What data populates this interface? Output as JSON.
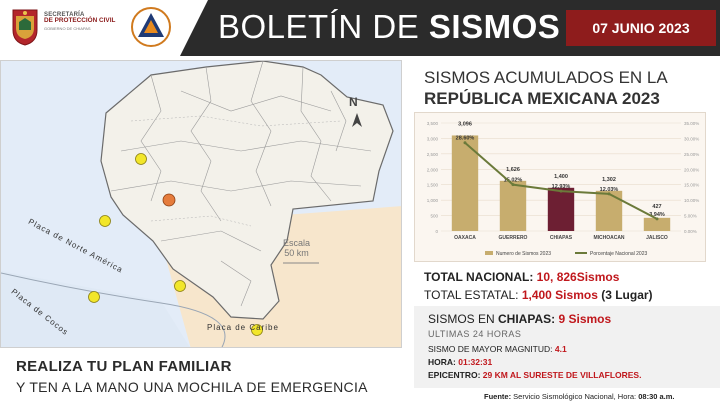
{
  "header": {
    "logo_line1": "SECRETARÍA",
    "logo_line2": "DE PROTECCIÓN CIVIL",
    "logo_line3": "GOBIERNO DE CHIAPAS",
    "title_light": "BOLETÍN DE ",
    "title_bold": "SISMOS",
    "date": "07 JUNIO 2023"
  },
  "map": {
    "plate_north_america": "Placa de Norte América",
    "plate_cocos": "Placa de Cocos",
    "plate_caribe": "Placa de Caribe",
    "scale_label": "Escala",
    "scale_value": "50 km",
    "north_label": "N"
  },
  "bottom_left": {
    "line1": "REALIZA TU PLAN FAMILIAR",
    "line2": "Y TEN A LA MANO UNA MOCHILA DE EMERGENCIA"
  },
  "right": {
    "title_line1": "SISMOS ACUMULADOS EN LA",
    "title_line2": "REPÚBLICA MEXICANA 2023"
  },
  "chart_data": {
    "type": "bar",
    "categories": [
      "OAXACA",
      "GUERRERO",
      "CHIAPAS",
      "MICHOACAN",
      "JALISCO"
    ],
    "series": [
      {
        "name": "Numero de Sismos 2023",
        "values": [
          3096,
          1626,
          1400,
          1302,
          427
        ]
      },
      {
        "name": "Porcentaje Nacional 2023",
        "values": [
          28.6,
          15.02,
          12.93,
          12.03,
          3.94
        ]
      }
    ],
    "value_labels": [
      "3,096",
      "1,626",
      "1,400",
      "1,302",
      "427"
    ],
    "pct_labels": [
      "28.60%",
      "15.02%",
      "12.93%",
      "12.03%",
      "3.94%"
    ],
    "ylim": [
      0,
      3500
    ],
    "y_ticks": [
      "0",
      "500",
      "1,000",
      "1,500",
      "2,000",
      "2,500",
      "3,000",
      "3,500"
    ],
    "y2_ticks": [
      "0.00%",
      "5.00%",
      "10.00%",
      "15.00%",
      "20.00%",
      "25.00%",
      "30.00%",
      "35.00%"
    ],
    "legend_position": "bottom",
    "colors": {
      "bar": "#c7ad6e",
      "highlight": "#6d1f33",
      "line": "#6b7a3a"
    }
  },
  "totals": {
    "nacional_label": "TOTAL NACIONAL: ",
    "nacional_value": "10, 826Sismos",
    "estatal_label": "TOTAL ESTATAL: ",
    "estatal_value": "1,400 Sismos",
    "estatal_rank": " (3 Lugar)"
  },
  "chiapas": {
    "title_label": "SISMOS EN ",
    "title_state": "CHIAPAS:",
    "title_value": "9  Sismos",
    "subtitle": "ULTIMAS 24 HORAS",
    "max_label": "SISMO DE MAYOR MAGNITUD: ",
    "max_value": "4.1",
    "hora_label": "HORA: ",
    "hora_value": "01:32:31",
    "epi_label": "EPICENTRO: ",
    "epi_value": "29 KM AL SURESTE DE VILLAFLORES."
  },
  "source": {
    "label": "Fuente: ",
    "value": "Servicio Sismológico Nacional, Hora: ",
    "time": "08:30 a.m."
  }
}
